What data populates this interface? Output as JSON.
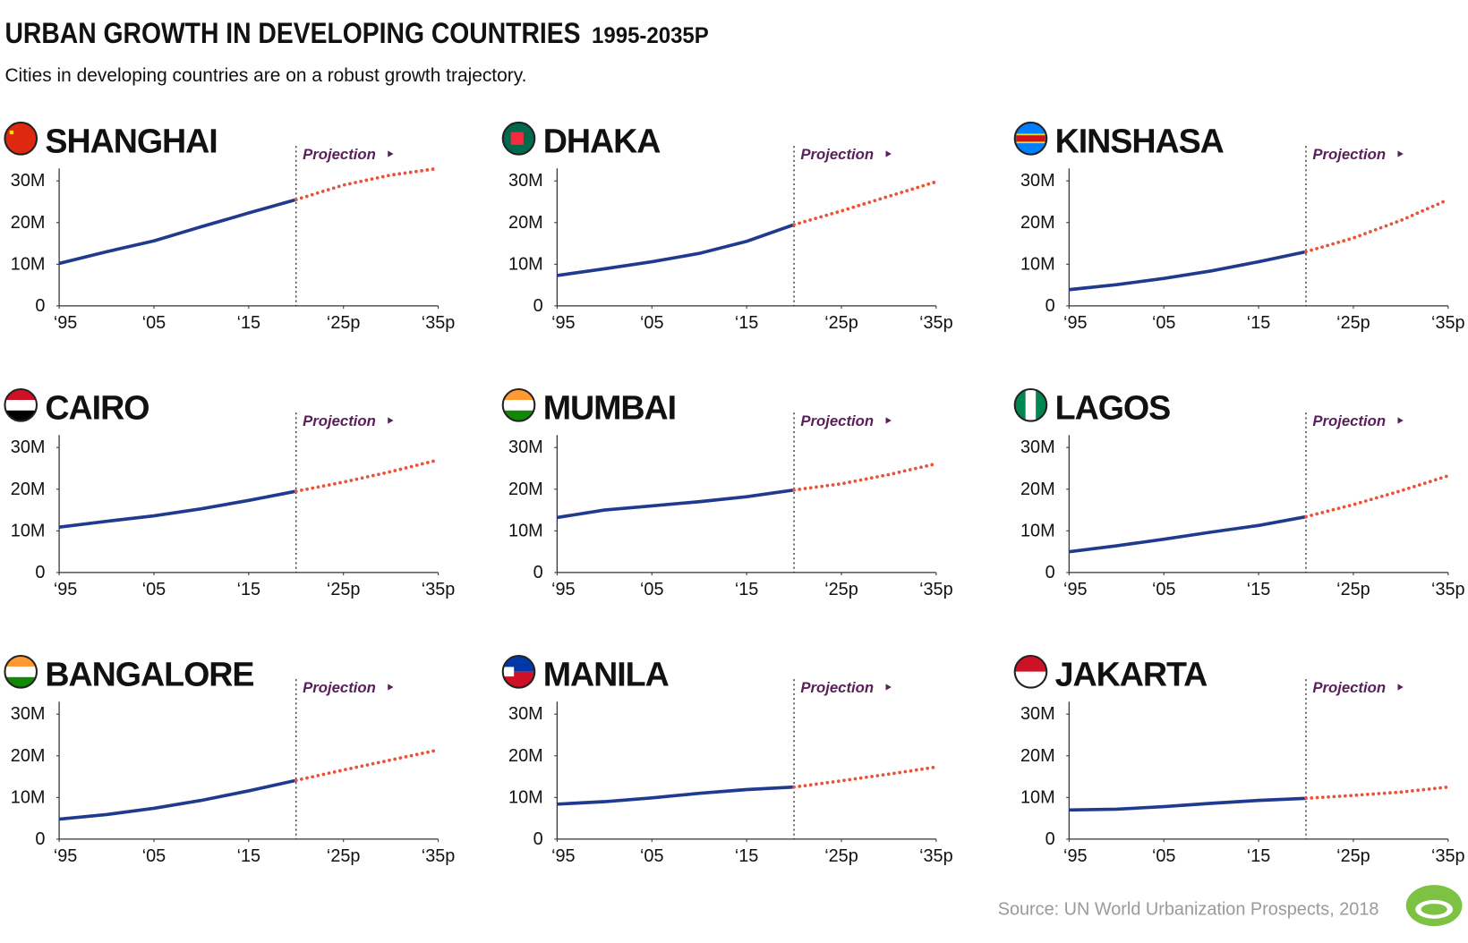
{
  "header": {
    "title": "URBAN GROWTH IN DEVELOPING COUNTRIES",
    "title_suffix": "1995-2035P",
    "subtitle": "Cities in developing countries are on a robust growth trajectory."
  },
  "footer": {
    "source": "Source: UN World Urbanization Prospects, 2018"
  },
  "chart_data": [
    {
      "type": "line",
      "title": "SHANGHAI",
      "x": [
        1995,
        2000,
        2005,
        2010,
        2015,
        2020,
        2025,
        2030,
        2035
      ],
      "series": [
        {
          "color": "#1f3a8f",
          "values": [
            10.2,
            13.0,
            15.6,
            19.0,
            22.3,
            25.5,
            null,
            null,
            null
          ]
        },
        {
          "color": "#e8533a",
          "values": [
            null,
            null,
            null,
            null,
            null,
            25.5,
            29.0,
            31.4,
            33.0
          ]
        }
      ],
      "annotation": {
        "text": "Projection",
        "x": 2020
      },
      "xlim": [
        1995,
        2035
      ],
      "ylim": [
        0,
        33
      ],
      "xticks": [
        {
          "value": 1995,
          "label": "‘95"
        },
        {
          "value": 2005,
          "label": "‘05"
        },
        {
          "value": 2015,
          "label": "‘15"
        },
        {
          "value": 2025,
          "label": "‘25p"
        },
        {
          "value": 2035,
          "label": "‘35p"
        }
      ],
      "yticks": [
        0,
        {
          "value": 10,
          "label": "10M"
        },
        {
          "value": 20,
          "label": "20M"
        },
        {
          "value": 30,
          "label": "30M"
        }
      ]
    },
    {
      "type": "line",
      "title": "DHAKA",
      "x": [
        1995,
        2000,
        2005,
        2010,
        2015,
        2020,
        2025,
        2030,
        2035
      ],
      "series": [
        {
          "color": "#1f3a8f",
          "values": [
            7.3,
            8.9,
            10.6,
            12.6,
            15.5,
            19.5,
            null,
            null,
            null
          ]
        },
        {
          "color": "#e8533a",
          "values": [
            null,
            null,
            null,
            null,
            null,
            19.5,
            22.8,
            26.3,
            29.8
          ]
        }
      ],
      "annotation": {
        "text": "Projection",
        "x": 2020
      },
      "xlim": [
        1995,
        2035
      ],
      "ylim": [
        0,
        33
      ],
      "xticks": [
        {
          "value": 1995,
          "label": "‘95"
        },
        {
          "value": 2005,
          "label": "‘05"
        },
        {
          "value": 2015,
          "label": "‘15"
        },
        {
          "value": 2025,
          "label": "‘25p"
        },
        {
          "value": 2035,
          "label": "‘35p"
        }
      ],
      "yticks": [
        0,
        {
          "value": 10,
          "label": "10M"
        },
        {
          "value": 20,
          "label": "20M"
        },
        {
          "value": 30,
          "label": "30M"
        }
      ]
    },
    {
      "type": "line",
      "title": "KINSHASA",
      "x": [
        1995,
        2000,
        2005,
        2010,
        2015,
        2020,
        2025,
        2030,
        2035
      ],
      "series": [
        {
          "color": "#1f3a8f",
          "values": [
            3.9,
            5.1,
            6.6,
            8.4,
            10.6,
            13.0,
            null,
            null,
            null
          ]
        },
        {
          "color": "#e8533a",
          "values": [
            null,
            null,
            null,
            null,
            null,
            13.0,
            16.3,
            20.5,
            25.5
          ]
        }
      ],
      "annotation": {
        "text": "Projection",
        "x": 2020
      },
      "xlim": [
        1995,
        2035
      ],
      "ylim": [
        0,
        33
      ],
      "xticks": [
        {
          "value": 1995,
          "label": "‘95"
        },
        {
          "value": 2005,
          "label": "‘05"
        },
        {
          "value": 2015,
          "label": "‘15"
        },
        {
          "value": 2025,
          "label": "‘25p"
        },
        {
          "value": 2035,
          "label": "‘35p"
        }
      ],
      "yticks": [
        0,
        {
          "value": 10,
          "label": "10M"
        },
        {
          "value": 20,
          "label": "20M"
        },
        {
          "value": 30,
          "label": "30M"
        }
      ]
    },
    {
      "type": "line",
      "title": "CAIRO",
      "x": [
        1995,
        2000,
        2005,
        2010,
        2015,
        2020,
        2025,
        2030,
        2035
      ],
      "series": [
        {
          "color": "#1f3a8f",
          "values": [
            10.9,
            12.3,
            13.6,
            15.3,
            17.3,
            19.5,
            null,
            null,
            null
          ]
        },
        {
          "color": "#e8533a",
          "values": [
            null,
            null,
            null,
            null,
            null,
            19.5,
            21.7,
            24.2,
            27.0
          ]
        }
      ],
      "annotation": {
        "text": "Projection",
        "x": 2020
      },
      "xlim": [
        1995,
        2035
      ],
      "ylim": [
        0,
        33
      ],
      "xticks": [
        {
          "value": 1995,
          "label": "‘95"
        },
        {
          "value": 2005,
          "label": "‘05"
        },
        {
          "value": 2015,
          "label": "‘15"
        },
        {
          "value": 2025,
          "label": "‘25p"
        },
        {
          "value": 2035,
          "label": "‘35p"
        }
      ],
      "yticks": [
        0,
        {
          "value": 10,
          "label": "10M"
        },
        {
          "value": 20,
          "label": "20M"
        },
        {
          "value": 30,
          "label": "30M"
        }
      ]
    },
    {
      "type": "line",
      "title": "MUMBAI",
      "x": [
        1995,
        2000,
        2005,
        2010,
        2015,
        2020,
        2025,
        2030,
        2035
      ],
      "series": [
        {
          "color": "#1f3a8f",
          "values": [
            13.2,
            15.0,
            16.0,
            17.0,
            18.2,
            19.8,
            null,
            null,
            null
          ]
        },
        {
          "color": "#e8533a",
          "values": [
            null,
            null,
            null,
            null,
            null,
            19.8,
            21.3,
            23.5,
            26.1
          ]
        }
      ],
      "annotation": {
        "text": "Projection",
        "x": 2020
      },
      "xlim": [
        1995,
        2035
      ],
      "ylim": [
        0,
        33
      ],
      "xticks": [
        {
          "value": 1995,
          "label": "‘95"
        },
        {
          "value": 2005,
          "label": "‘05"
        },
        {
          "value": 2015,
          "label": "‘15"
        },
        {
          "value": 2025,
          "label": "‘25p"
        },
        {
          "value": 2035,
          "label": "‘35p"
        }
      ],
      "yticks": [
        0,
        {
          "value": 10,
          "label": "10M"
        },
        {
          "value": 20,
          "label": "20M"
        },
        {
          "value": 30,
          "label": "30M"
        }
      ]
    },
    {
      "type": "line",
      "title": "LAGOS",
      "x": [
        1995,
        2000,
        2005,
        2010,
        2015,
        2020,
        2025,
        2030,
        2035
      ],
      "series": [
        {
          "color": "#1f3a8f",
          "values": [
            5.0,
            6.4,
            8.0,
            9.7,
            11.3,
            13.4,
            null,
            null,
            null
          ]
        },
        {
          "color": "#e8533a",
          "values": [
            null,
            null,
            null,
            null,
            null,
            13.4,
            16.3,
            19.6,
            23.2
          ]
        }
      ],
      "annotation": {
        "text": "Projection",
        "x": 2020
      },
      "xlim": [
        1995,
        2035
      ],
      "ylim": [
        0,
        33
      ],
      "xticks": [
        {
          "value": 1995,
          "label": "‘95"
        },
        {
          "value": 2005,
          "label": "‘05"
        },
        {
          "value": 2015,
          "label": "‘15"
        },
        {
          "value": 2025,
          "label": "‘25p"
        },
        {
          "value": 2035,
          "label": "‘35p"
        }
      ],
      "yticks": [
        0,
        {
          "value": 10,
          "label": "10M"
        },
        {
          "value": 20,
          "label": "20M"
        },
        {
          "value": 30,
          "label": "30M"
        }
      ]
    },
    {
      "type": "line",
      "title": "BANGALORE",
      "x": [
        1995,
        2000,
        2005,
        2010,
        2015,
        2020,
        2025,
        2030,
        2035
      ],
      "series": [
        {
          "color": "#1f3a8f",
          "values": [
            4.8,
            5.9,
            7.4,
            9.3,
            11.6,
            14.1,
            null,
            null,
            null
          ]
        },
        {
          "color": "#e8533a",
          "values": [
            null,
            null,
            null,
            null,
            null,
            14.1,
            16.6,
            19.0,
            21.4
          ]
        }
      ],
      "annotation": {
        "text": "Projection",
        "x": 2020
      },
      "xlim": [
        1995,
        2035
      ],
      "ylim": [
        0,
        33
      ],
      "xticks": [
        {
          "value": 1995,
          "label": "‘95"
        },
        {
          "value": 2005,
          "label": "‘05"
        },
        {
          "value": 2015,
          "label": "‘15"
        },
        {
          "value": 2025,
          "label": "‘25p"
        },
        {
          "value": 2035,
          "label": "‘35p"
        }
      ],
      "yticks": [
        0,
        {
          "value": 10,
          "label": "10M"
        },
        {
          "value": 20,
          "label": "20M"
        },
        {
          "value": 30,
          "label": "30M"
        }
      ]
    },
    {
      "type": "line",
      "title": "MANILA",
      "x": [
        1995,
        2000,
        2005,
        2010,
        2015,
        2020,
        2025,
        2030,
        2035
      ],
      "series": [
        {
          "color": "#1f3a8f",
          "values": [
            8.4,
            9.0,
            9.9,
            11.0,
            11.9,
            12.5,
            null,
            null,
            null
          ]
        },
        {
          "color": "#e8533a",
          "values": [
            null,
            null,
            null,
            null,
            null,
            12.5,
            14.0,
            15.6,
            17.3
          ]
        }
      ],
      "annotation": {
        "text": "Projection",
        "x": 2020
      },
      "xlim": [
        1995,
        2035
      ],
      "ylim": [
        0,
        33
      ],
      "xticks": [
        {
          "value": 1995,
          "label": "‘95"
        },
        {
          "value": 2005,
          "label": "‘05"
        },
        {
          "value": 2015,
          "label": "‘15"
        },
        {
          "value": 2025,
          "label": "‘25p"
        },
        {
          "value": 2035,
          "label": "‘35p"
        }
      ],
      "yticks": [
        0,
        {
          "value": 10,
          "label": "10M"
        },
        {
          "value": 20,
          "label": "20M"
        },
        {
          "value": 30,
          "label": "30M"
        }
      ]
    },
    {
      "type": "line",
      "title": "JAKARTA",
      "x": [
        1995,
        2000,
        2005,
        2010,
        2015,
        2020,
        2025,
        2030,
        2035
      ],
      "series": [
        {
          "color": "#1f3a8f",
          "values": [
            7.0,
            7.2,
            7.8,
            8.6,
            9.3,
            9.8,
            null,
            null,
            null
          ]
        },
        {
          "color": "#e8533a",
          "values": [
            null,
            null,
            null,
            null,
            null,
            9.8,
            10.5,
            11.3,
            12.5
          ]
        }
      ],
      "annotation": {
        "text": "Projection",
        "x": 2020
      },
      "xlim": [
        1995,
        2035
      ],
      "ylim": [
        0,
        33
      ],
      "xticks": [
        {
          "value": 1995,
          "label": "‘95"
        },
        {
          "value": 2005,
          "label": "‘05"
        },
        {
          "value": 2015,
          "label": "‘15"
        },
        {
          "value": 2025,
          "label": "‘25p"
        },
        {
          "value": 2035,
          "label": "‘35p"
        }
      ],
      "yticks": [
        0,
        {
          "value": 10,
          "label": "10M"
        },
        {
          "value": 20,
          "label": "20M"
        },
        {
          "value": 30,
          "label": "30M"
        }
      ]
    }
  ]
}
